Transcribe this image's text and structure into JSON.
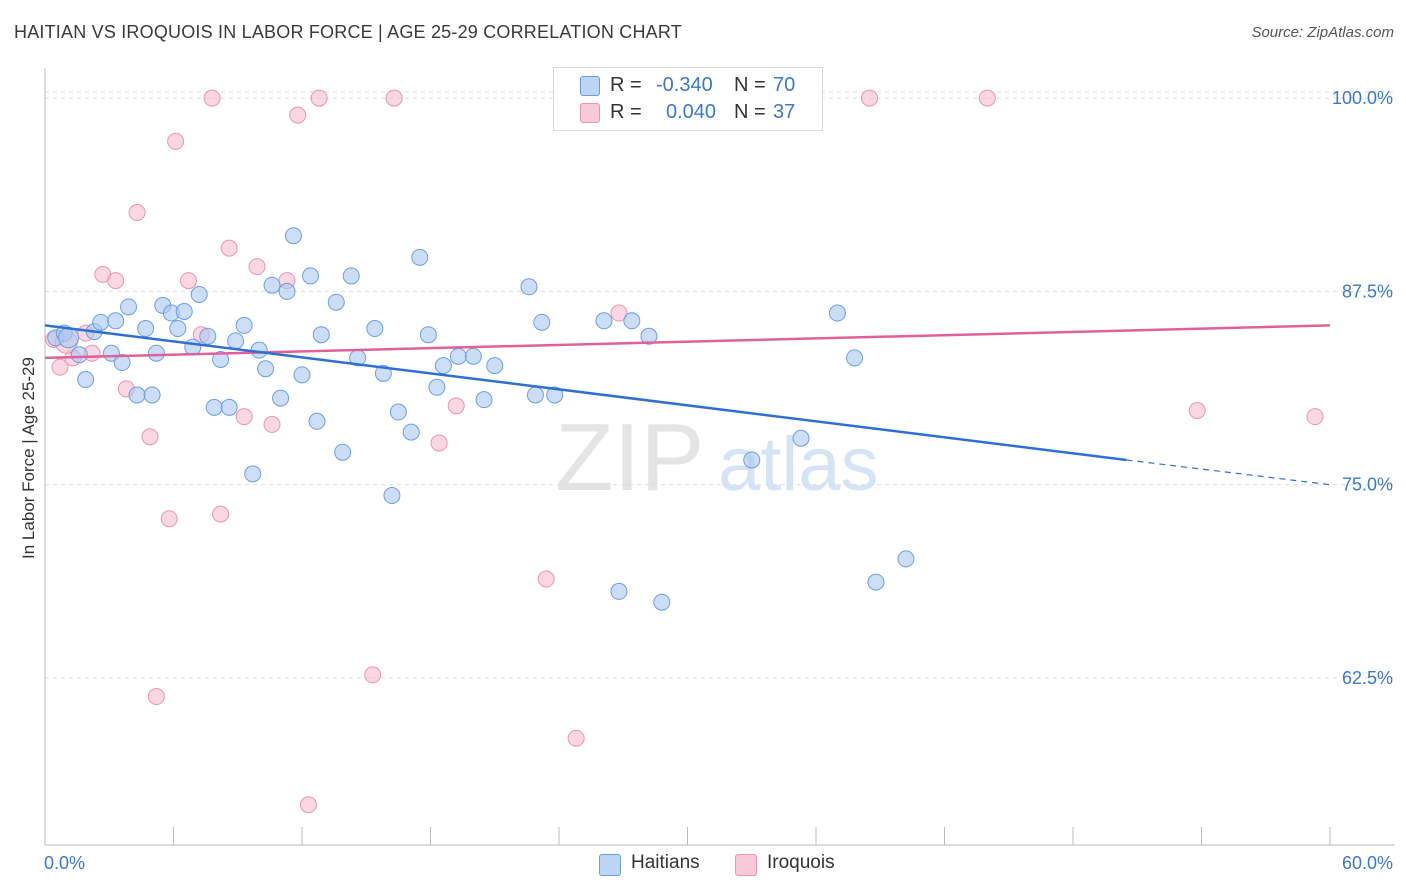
{
  "header": {
    "title": "HAITIAN VS IROQUOIS IN LABOR FORCE | AGE 25-29 CORRELATION CHART",
    "source": "Source: ZipAtlas.com"
  },
  "colors": {
    "haitians_fill": "#a9c8f0",
    "haitians_stroke": "#6a9fdc",
    "haitians_line": "#2d6fd4",
    "iroquois_fill": "#f6bcd0",
    "iroquois_stroke": "#ea93b2",
    "iroquois_line": "#e0609a",
    "value_text": "#3a78c9",
    "grid": "#dcdcdc"
  },
  "legend": {
    "rows": [
      {
        "r_label": "R =",
        "r_value": "-0.340",
        "n_label": "N =",
        "n_value": "70"
      },
      {
        "r_label": "R =",
        "r_value": "0.040",
        "n_label": "N =",
        "n_value": "37"
      }
    ]
  },
  "bottom_legend": [
    "Haitians",
    "Iroquois"
  ],
  "watermark": {
    "zip": "ZIP",
    "atlas": "atlas"
  },
  "chart_data": {
    "type": "scatter",
    "title": "HAITIAN VS IROQUOIS IN LABOR FORCE | AGE 25-29 CORRELATION CHART",
    "xlabel": "",
    "ylabel": "In Labor Force | Age 25-29",
    "xlim": [
      0,
      60
    ],
    "ylim": [
      51.7,
      101.3
    ],
    "x_tick_labels": [
      "0.0%",
      "60.0%"
    ],
    "y_ticks": [
      62.5,
      75.0,
      87.5,
      100.0
    ],
    "y_tick_labels": [
      "62.5%",
      "75.0%",
      "87.5%",
      "100.0%"
    ],
    "grid": true,
    "series": [
      {
        "name": "Haitians",
        "r": -0.34,
        "n": 70,
        "trend": {
          "x0": 0,
          "y0": 85.3,
          "x1": 50.5,
          "y1": 76.6,
          "dashed_to_x": 60,
          "dashed_to_y": 75.0
        },
        "points": [
          [
            0.5,
            84.5
          ],
          [
            0.9,
            84.8
          ],
          [
            1.1,
            84.5
          ],
          [
            1.6,
            83.4
          ],
          [
            1.9,
            81.8
          ],
          [
            2.3,
            84.9
          ],
          [
            2.6,
            85.5
          ],
          [
            3.1,
            83.5
          ],
          [
            3.3,
            85.6
          ],
          [
            3.6,
            82.9
          ],
          [
            3.9,
            86.5
          ],
          [
            4.3,
            80.8
          ],
          [
            4.7,
            85.1
          ],
          [
            5.0,
            80.8
          ],
          [
            5.2,
            83.5
          ],
          [
            5.5,
            86.6
          ],
          [
            5.9,
            86.1
          ],
          [
            6.2,
            85.1
          ],
          [
            6.5,
            86.2
          ],
          [
            6.9,
            83.9
          ],
          [
            7.2,
            87.3
          ],
          [
            7.6,
            84.6
          ],
          [
            7.9,
            80.0
          ],
          [
            8.2,
            83.1
          ],
          [
            8.6,
            80.0
          ],
          [
            8.9,
            84.3
          ],
          [
            9.3,
            85.3
          ],
          [
            9.7,
            75.7
          ],
          [
            10.0,
            83.7
          ],
          [
            10.3,
            82.5
          ],
          [
            10.6,
            87.9
          ],
          [
            11.0,
            80.6
          ],
          [
            11.3,
            87.5
          ],
          [
            11.6,
            91.1
          ],
          [
            12.0,
            82.1
          ],
          [
            12.4,
            88.5
          ],
          [
            12.7,
            79.1
          ],
          [
            12.9,
            84.7
          ],
          [
            13.6,
            86.8
          ],
          [
            13.9,
            77.1
          ],
          [
            14.3,
            88.5
          ],
          [
            14.6,
            83.2
          ],
          [
            15.4,
            85.1
          ],
          [
            15.8,
            82.2
          ],
          [
            16.2,
            74.3
          ],
          [
            16.5,
            79.7
          ],
          [
            17.1,
            78.4
          ],
          [
            17.5,
            89.7
          ],
          [
            17.9,
            84.7
          ],
          [
            18.3,
            81.3
          ],
          [
            18.6,
            82.7
          ],
          [
            19.3,
            83.3
          ],
          [
            20.0,
            83.3
          ],
          [
            20.5,
            80.5
          ],
          [
            21.0,
            82.7
          ],
          [
            22.6,
            87.8
          ],
          [
            22.9,
            80.8
          ],
          [
            23.2,
            85.5
          ],
          [
            23.8,
            80.8
          ],
          [
            26.1,
            85.6
          ],
          [
            26.8,
            68.1
          ],
          [
            27.4,
            85.6
          ],
          [
            28.2,
            84.6
          ],
          [
            28.8,
            67.4
          ],
          [
            33.0,
            76.6
          ],
          [
            35.3,
            78.0
          ],
          [
            37.0,
            86.1
          ],
          [
            37.8,
            83.2
          ],
          [
            38.8,
            68.7
          ],
          [
            40.2,
            70.2
          ]
        ]
      },
      {
        "name": "Iroquois",
        "r": 0.04,
        "n": 37,
        "trend": {
          "x0": 0,
          "y0": 83.2,
          "x1": 60,
          "y1": 85.3
        },
        "points": [
          [
            0.4,
            84.4
          ],
          [
            0.7,
            82.6
          ],
          [
            1.3,
            83.2
          ],
          [
            1.9,
            84.8
          ],
          [
            2.2,
            83.5
          ],
          [
            2.7,
            88.6
          ],
          [
            3.3,
            88.2
          ],
          [
            3.8,
            81.2
          ],
          [
            4.3,
            92.6
          ],
          [
            4.9,
            78.1
          ],
          [
            5.2,
            61.3
          ],
          [
            5.8,
            72.8
          ],
          [
            6.1,
            97.2
          ],
          [
            6.7,
            88.2
          ],
          [
            7.3,
            84.7
          ],
          [
            7.8,
            100.0
          ],
          [
            8.2,
            73.1
          ],
          [
            8.6,
            90.3
          ],
          [
            9.3,
            79.4
          ],
          [
            9.9,
            89.1
          ],
          [
            10.6,
            78.9
          ],
          [
            11.3,
            88.2
          ],
          [
            11.8,
            98.9
          ],
          [
            12.3,
            54.3
          ],
          [
            12.8,
            100.0
          ],
          [
            15.3,
            62.7
          ],
          [
            16.3,
            100.0
          ],
          [
            18.4,
            77.7
          ],
          [
            19.2,
            80.1
          ],
          [
            23.4,
            68.9
          ],
          [
            24.8,
            58.6
          ],
          [
            26.8,
            86.1
          ],
          [
            38.5,
            100.0
          ],
          [
            44.0,
            100.0
          ],
          [
            53.8,
            79.8
          ],
          [
            59.3,
            79.4
          ],
          [
            1.0,
            84.2
          ]
        ]
      }
    ]
  }
}
